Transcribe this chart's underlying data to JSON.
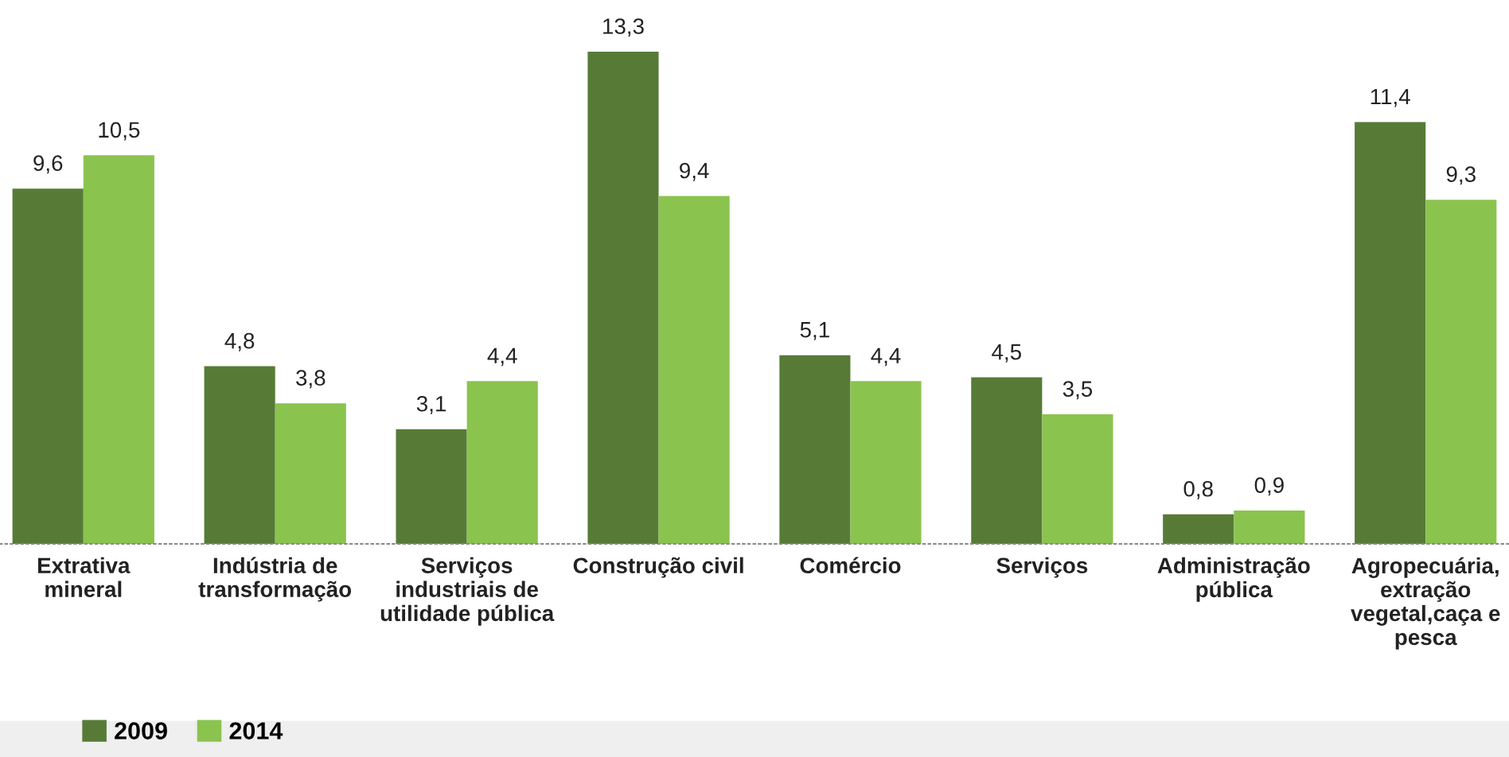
{
  "chart_data": {
    "type": "bar",
    "categories": [
      "Extrativa\nmineral",
      "Indústria de\ntransformação",
      "Serviços\nindustriais de\nutilidade pública",
      "Construção civil",
      "Comércio",
      "Serviços",
      "Administração\npública",
      "Agropecuária,\nextração\nvegetal,caça e\npesca"
    ],
    "series": [
      {
        "name": "2009",
        "color": "#577b37",
        "values": [
          9.6,
          4.8,
          3.1,
          13.3,
          5.1,
          4.5,
          0.8,
          11.4
        ],
        "value_labels": [
          "9,6",
          "4,8",
          "3,1",
          "13,3",
          "5,1",
          "4,5",
          "0,8",
          "11,4"
        ]
      },
      {
        "name": "2014",
        "color": "#8bc34f",
        "values": [
          10.5,
          3.8,
          4.4,
          9.4,
          4.4,
          3.5,
          0.9,
          9.3
        ],
        "value_labels": [
          "10,5",
          "3,8",
          "4,4",
          "9,4",
          "4,4",
          "3,5",
          "0,9",
          "9,3"
        ]
      }
    ],
    "tick_labels": "x",
    "grid": false,
    "legend": "bottom left"
  }
}
